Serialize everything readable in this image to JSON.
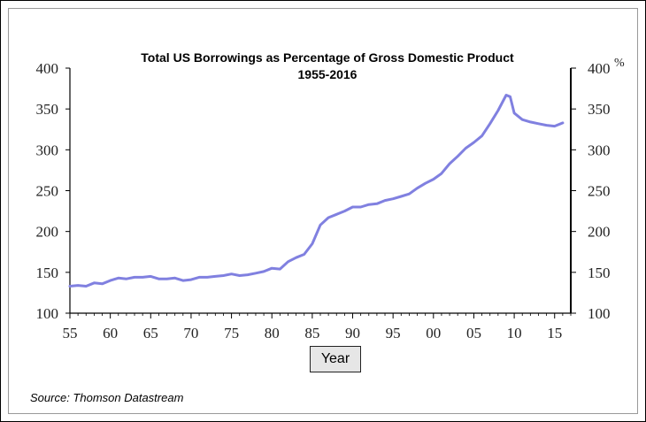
{
  "chart_data": {
    "type": "line",
    "title": "Total US Borrowings as Percentage of Gross Domestic Product",
    "subtitle": "1955-2016",
    "xlabel": "Year",
    "ylabel": "",
    "right_axis_unit": "%",
    "x_tick_labels": [
      "55",
      "60",
      "65",
      "70",
      "75",
      "80",
      "85",
      "90",
      "95",
      "00",
      "05",
      "10",
      "15"
    ],
    "y_ticks": [
      100,
      150,
      200,
      250,
      300,
      350,
      400
    ],
    "ylim": [
      100,
      400
    ],
    "xlim": [
      1955,
      2017
    ],
    "grid": false,
    "line_color": "#8080e0",
    "series": [
      {
        "x": [
          1955,
          1956,
          1957,
          1958,
          1959,
          1960,
          1961,
          1962,
          1963,
          1964,
          1965,
          1966,
          1967,
          1968,
          1969,
          1970,
          1971,
          1972,
          1973,
          1974,
          1975,
          1976,
          1977,
          1978,
          1979,
          1980,
          1981,
          1982,
          1983,
          1984,
          1985,
          1986,
          1987,
          1988,
          1989,
          1990,
          1991,
          1992,
          1993,
          1994,
          1995,
          1996,
          1997,
          1998,
          1999,
          2000,
          2001,
          2002,
          2003,
          2004,
          2005,
          2006,
          2007,
          2008,
          2009,
          2009.5,
          2010,
          2011,
          2012,
          2013,
          2014,
          2015,
          2016
        ],
        "values": [
          133,
          134,
          133,
          137,
          136,
          140,
          143,
          142,
          144,
          144,
          145,
          142,
          142,
          143,
          140,
          141,
          144,
          144,
          145,
          146,
          148,
          146,
          147,
          149,
          151,
          155,
          154,
          163,
          168,
          172,
          185,
          208,
          217,
          221,
          225,
          230,
          230,
          233,
          234,
          238,
          240,
          243,
          246,
          253,
          259,
          264,
          271,
          283,
          292,
          302,
          309,
          317,
          332,
          348,
          367,
          365,
          345,
          337,
          334,
          332,
          330,
          329,
          333
        ]
      }
    ]
  },
  "source_note": "Source: Thomson Datastream"
}
